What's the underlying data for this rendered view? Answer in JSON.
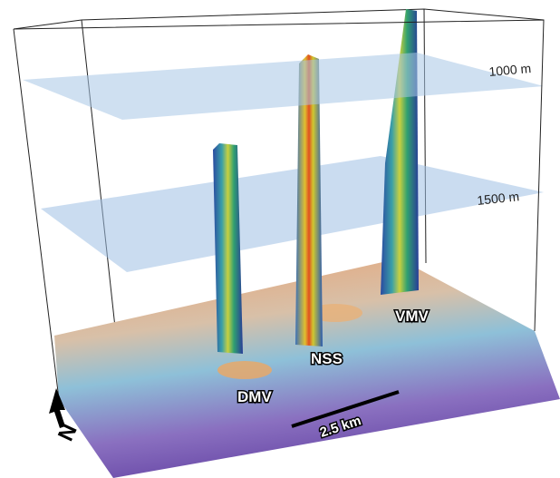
{
  "labels": {
    "depth_upper": "1000 m",
    "depth_lower": "1500 m",
    "sites": [
      "DMV",
      "NSS",
      "VMV"
    ],
    "scale_bar": "2.5 km",
    "north": "N"
  }
}
